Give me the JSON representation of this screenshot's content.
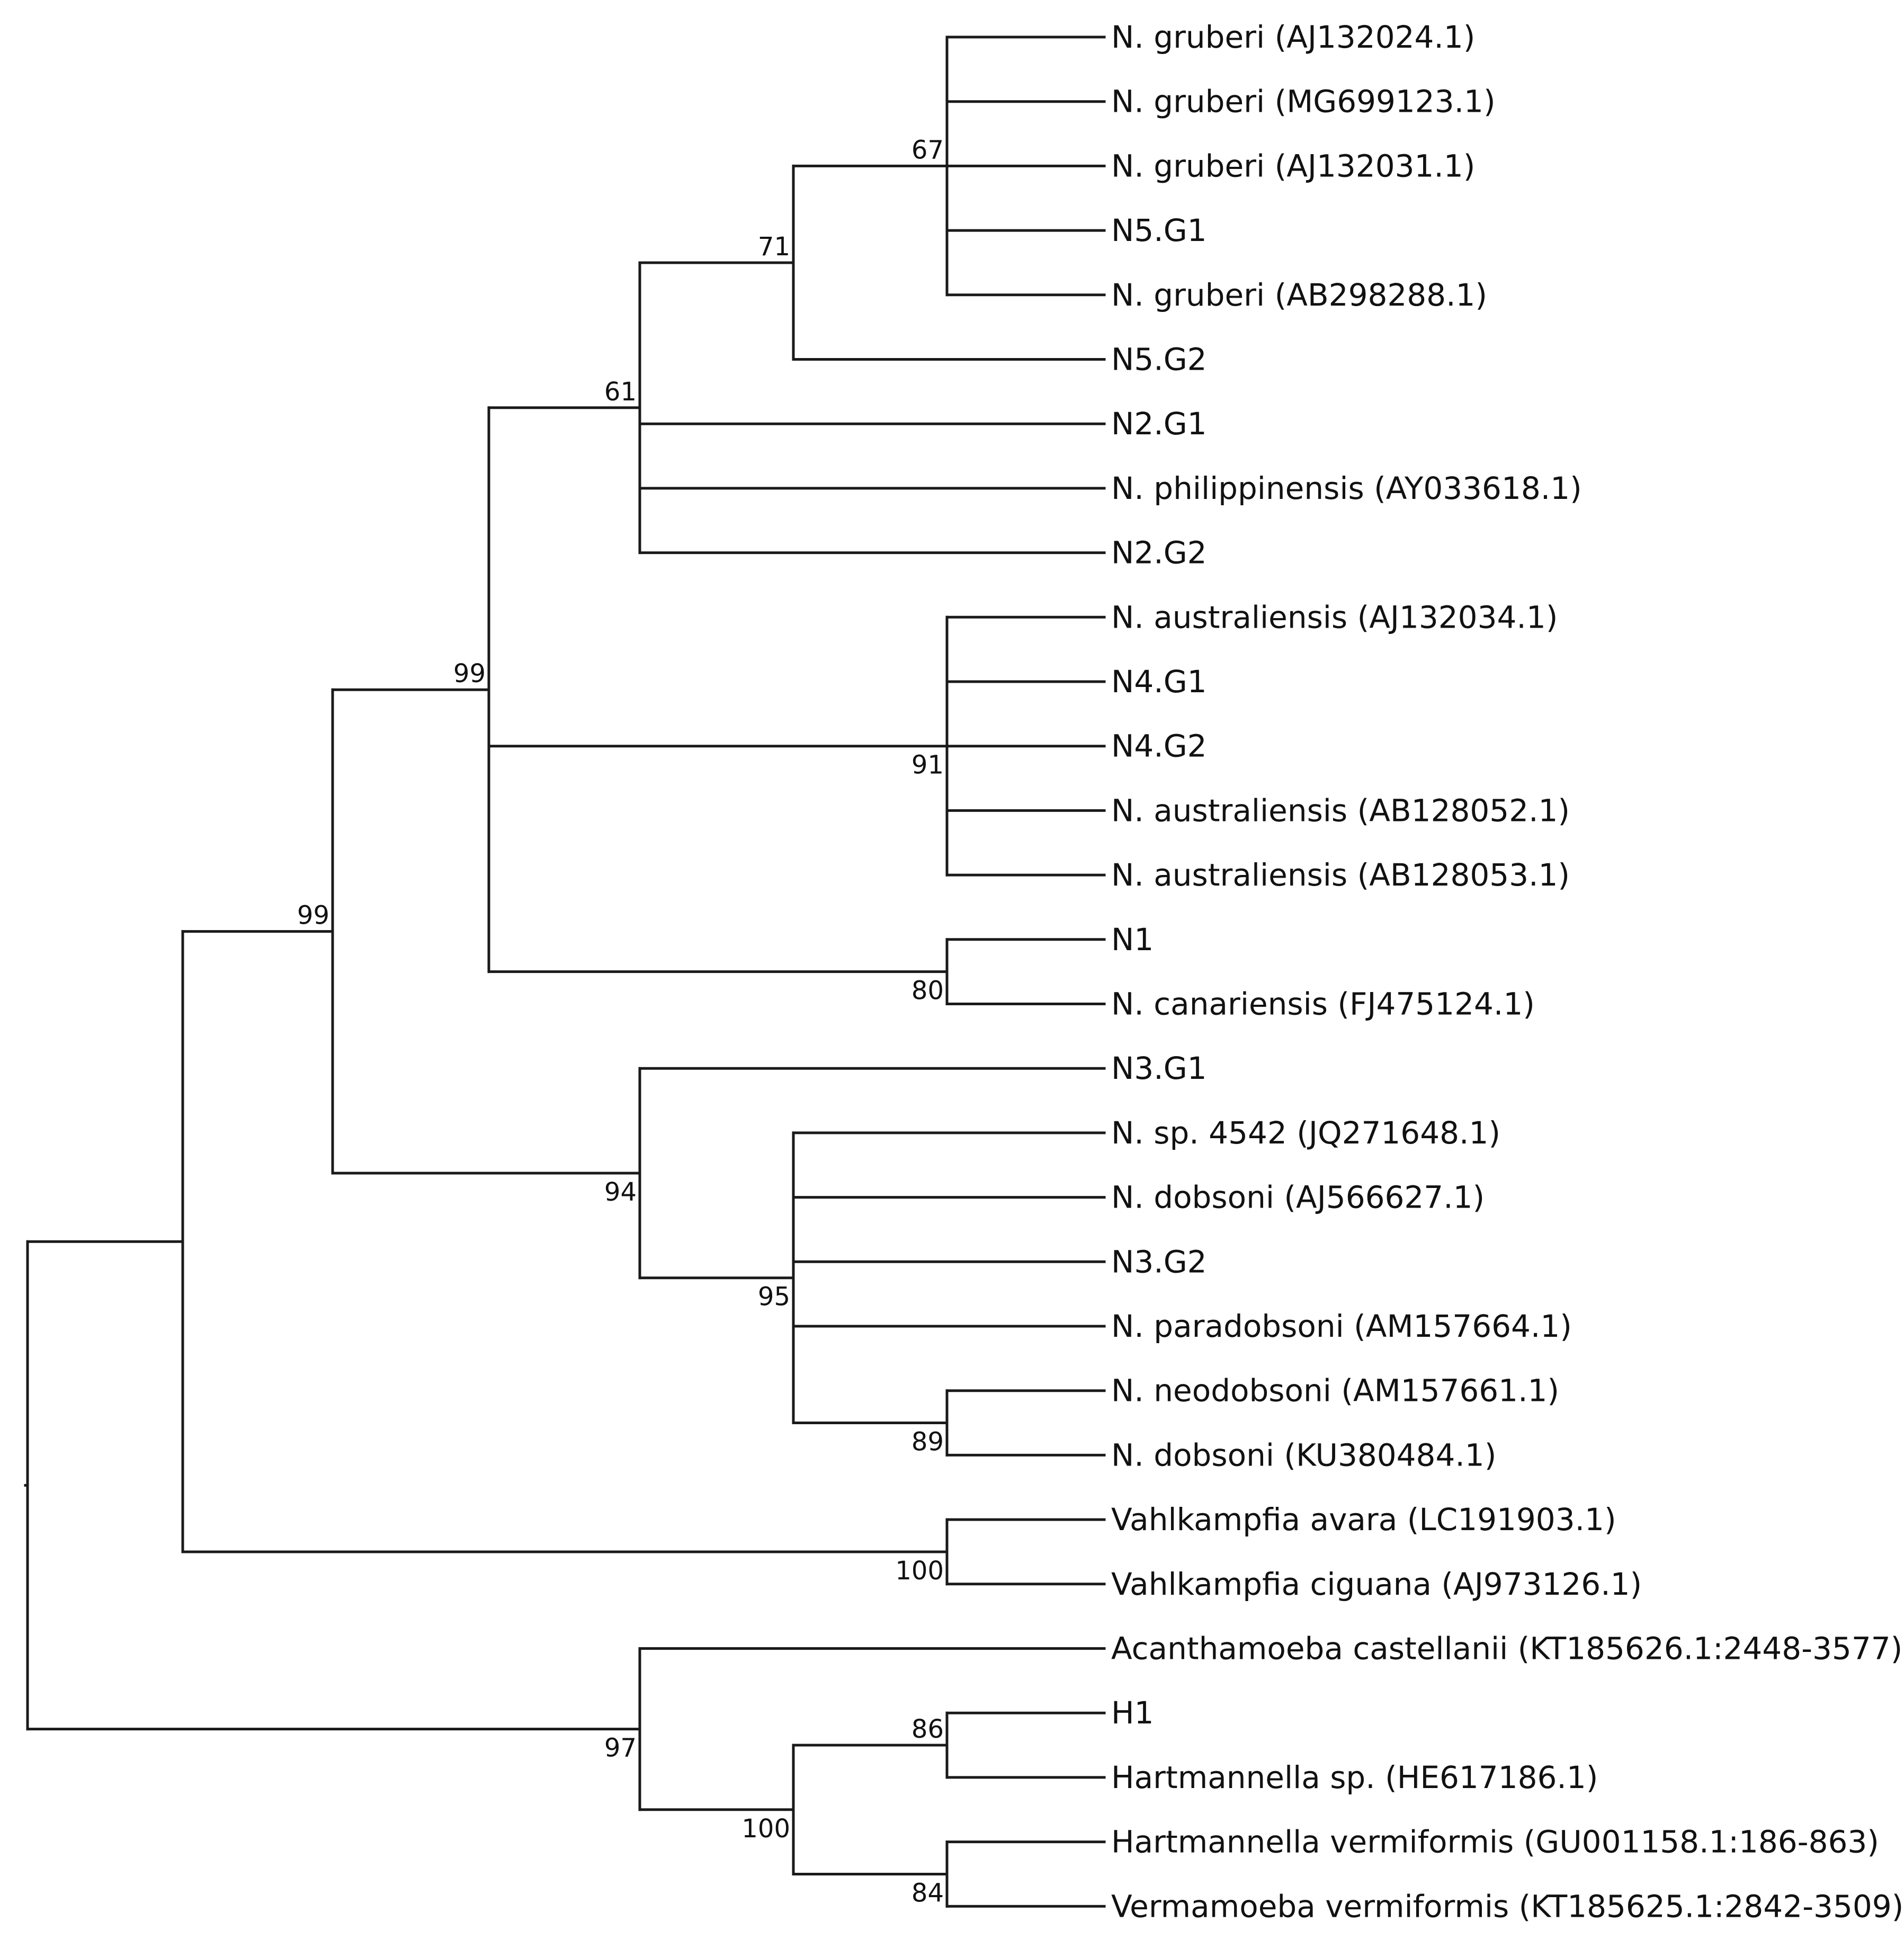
{
  "diagram": {
    "type": "phylogenetic-tree",
    "leaves": [
      "N. gruberi (AJ132024.1)",
      "N. gruberi (MG699123.1)",
      "N. gruberi (AJ132031.1)",
      "N5.G1",
      "N. gruberi (AB298288.1)",
      "N5.G2",
      "N2.G1",
      "N. philippinensis (AY033618.1)",
      "N2.G2",
      "N. australiensis (AJ132034.1)",
      "N4.G1",
      "N4.G2",
      "N. australiensis (AB128052.1)",
      "N. australiensis (AB128053.1)",
      "N1",
      "N. canariensis (FJ475124.1)",
      "N3.G1",
      "N. sp. 4542 (JQ271648.1)",
      "N. dobsoni (AJ566627.1)",
      "N3.G2",
      "N. paradobsoni (AM157664.1)",
      "N. neodobsoni (AM157661.1)",
      "N. dobsoni (KU380484.1)",
      "Vahlkampfia avara (LC191903.1)",
      "Vahlkampfia ciguana (AJ973126.1)",
      "Acanthamoeba castellanii (KT185626.1:2448-3577)",
      "H1",
      "Hartmannella sp. (HE617186.1)",
      "Hartmannella vermiformis (GU001158.1:186-863)",
      "Vermamoeba vermiformis (KT185625.1:2842-3509)"
    ],
    "nodes": [
      {
        "id": "root",
        "children": [
          "naeg_vahl",
          "outgroup"
        ],
        "support": null
      },
      {
        "id": "naeg_vahl",
        "children": [
          "naegleria",
          "vahl"
        ],
        "support": null
      },
      {
        "id": "naegleria",
        "children": [
          "clade99a",
          "clade94"
        ],
        "support": "99"
      },
      {
        "id": "clade99a",
        "children": [
          "clade61",
          "clade91",
          "clade80"
        ],
        "support": "99"
      },
      {
        "id": "clade61",
        "children": [
          "clade71",
          "N2.G1",
          "N. philippinensis (AY033618.1)",
          "N2.G2"
        ],
        "support": "61"
      },
      {
        "id": "clade71",
        "children": [
          "clade67",
          "N5.G2"
        ],
        "support": "71"
      },
      {
        "id": "clade67",
        "children": [
          "N. gruberi (AJ132024.1)",
          "N. gruberi (MG699123.1)",
          "N. gruberi (AJ132031.1)",
          "N5.G1",
          "N. gruberi (AB298288.1)"
        ],
        "support": "67"
      },
      {
        "id": "clade91",
        "children": [
          "N. australiensis (AJ132034.1)",
          "N4.G1",
          "N4.G2",
          "N. australiensis (AB128052.1)",
          "N. australiensis (AB128053.1)"
        ],
        "support": "91"
      },
      {
        "id": "clade80",
        "children": [
          "N1",
          "N. canariensis (FJ475124.1)"
        ],
        "support": "80"
      },
      {
        "id": "clade94",
        "children": [
          "N3.G1",
          "clade95"
        ],
        "support": "94"
      },
      {
        "id": "clade95",
        "children": [
          "N. sp. 4542 (JQ271648.1)",
          "N. dobsoni (AJ566627.1)",
          "N3.G2",
          "N. paradobsoni (AM157664.1)",
          "clade89"
        ],
        "support": "95"
      },
      {
        "id": "clade89",
        "children": [
          "N. neodobsoni (AM157661.1)",
          "N. dobsoni (KU380484.1)"
        ],
        "support": "89"
      },
      {
        "id": "vahl",
        "children": [
          "Vahlkampfia avara (LC191903.1)",
          "Vahlkampfia ciguana (AJ973126.1)"
        ],
        "support": "100"
      },
      {
        "id": "outgroup",
        "children": [
          "Acanthamoeba castellanii (KT185626.1:2448-3577)",
          "clade100b"
        ],
        "support": "97"
      },
      {
        "id": "clade100b",
        "children": [
          "clade86",
          "clade84"
        ],
        "support": "100"
      },
      {
        "id": "clade86",
        "children": [
          "H1",
          "Hartmannella sp. (HE617186.1)"
        ],
        "support": "86"
      },
      {
        "id": "clade84",
        "children": [
          "Hartmannella vermiformis (GU001158.1:186-863)",
          "Vermamoeba vermiformis (KT185625.1:2842-3509)"
        ],
        "support": "84"
      }
    ]
  }
}
